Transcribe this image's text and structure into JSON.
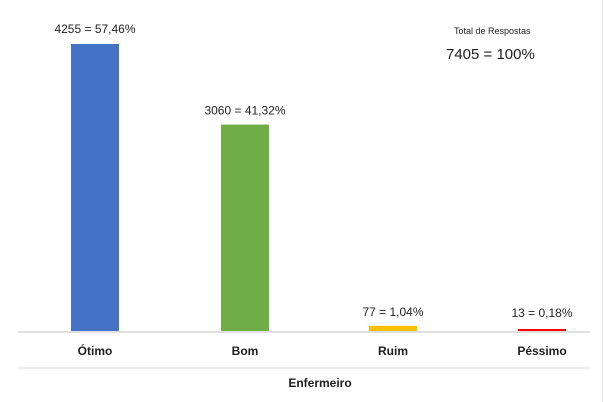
{
  "chart_data": {
    "type": "bar",
    "categories": [
      "Ótimo",
      "Bom",
      "Ruim",
      "Péssimo"
    ],
    "values": [
      4255,
      3060,
      77,
      13
    ],
    "data_labels": [
      "4255 = 57,46%",
      "3060 = 41,32%",
      "77 = 1,04%",
      "13 = 0,18%"
    ],
    "colors": [
      "#4472C4",
      "#70AD47",
      "#FFC000",
      "#FF0000"
    ],
    "xlabel": "Enfermeiro",
    "ylabel": "",
    "ylim": [
      0,
      4255
    ],
    "grid": false,
    "legend": "none",
    "annotation": {
      "title": "Total de Respostas",
      "value": "7405 = 100%"
    }
  }
}
